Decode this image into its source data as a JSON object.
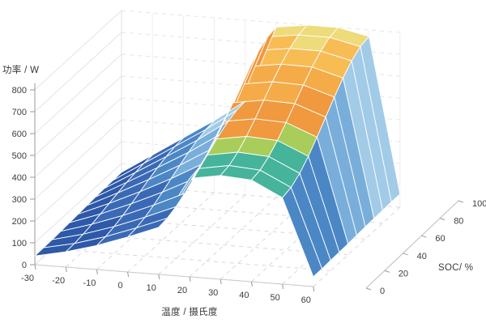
{
  "chart_data": {
    "type": "surface",
    "title": "",
    "zlabel": "功率 / W",
    "xlabel": "温度 / 摄氏度",
    "ylabel": "SOC/ %",
    "x": [
      -30,
      -20,
      -10,
      0,
      10,
      20,
      30,
      40,
      50,
      60
    ],
    "y": [
      0,
      10,
      20,
      30,
      40,
      50,
      60,
      70,
      80,
      90,
      100
    ],
    "z": [
      [
        40,
        41,
        42,
        44,
        47,
        50,
        53,
        56,
        58,
        59,
        60
      ],
      [
        70,
        72,
        78,
        87,
        98,
        110,
        122,
        133,
        142,
        148,
        150
      ],
      [
        110,
        114,
        124,
        138,
        156,
        175,
        194,
        212,
        226,
        236,
        240
      ],
      [
        160,
        165,
        178,
        197,
        220,
        245,
        270,
        293,
        312,
        325,
        330
      ],
      [
        215,
        221,
        237,
        261,
        291,
        323,
        354,
        384,
        408,
        424,
        430
      ],
      [
        450,
        459,
        484,
        521,
        566,
        615,
        664,
        709,
        746,
        771,
        780
      ],
      [
        475,
        484,
        509,
        545,
        589,
        638,
        686,
        730,
        766,
        791,
        800
      ],
      [
        465,
        474,
        500,
        537,
        583,
        633,
        682,
        728,
        765,
        791,
        800
      ],
      [
        395,
        406,
        434,
        476,
        527,
        583,
        638,
        689,
        731,
        760,
        770
      ],
      [
        45,
        45,
        47,
        48,
        50,
        53,
        55,
        57,
        58,
        60,
        60
      ]
    ],
    "x_ticks": [
      -30,
      -20,
      -10,
      0,
      10,
      20,
      30,
      40,
      50,
      60
    ],
    "y_ticks": [
      0,
      20,
      40,
      60,
      80,
      100
    ],
    "z_ticks": [
      0,
      100,
      200,
      300,
      400,
      500,
      600,
      700,
      800
    ],
    "zlim": [
      0,
      800
    ],
    "grid": true,
    "legend": "none",
    "background": "#ffffff",
    "mesh_color": "#ffffff",
    "axis_color": "#9a9a9a",
    "grid_color": "#dcdcdc",
    "tick_label_color": "#3d3d3d",
    "colormap": [
      {
        "max": 115,
        "color": "#2e59a8"
      },
      {
        "max": 210,
        "color": "#3a6ab5"
      },
      {
        "max": 290,
        "color": "#4c87c5"
      },
      {
        "max": 365,
        "color": "#79aedb"
      },
      {
        "max": 430,
        "color": "#a2cbe8"
      },
      {
        "max": 497,
        "color": "#46b39b"
      },
      {
        "max": 548,
        "color": "#a8cd5a"
      },
      {
        "max": 635,
        "color": "#f0993f"
      },
      {
        "max": 725,
        "color": "#f5ab47"
      },
      {
        "max": 778,
        "color": "#f8bc55"
      },
      {
        "max": 9999,
        "color": "#eedb7a"
      }
    ]
  }
}
